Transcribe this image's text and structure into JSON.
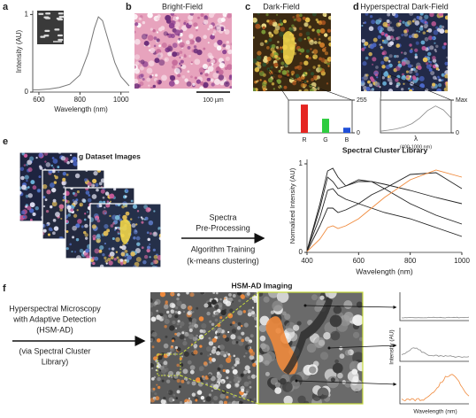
{
  "panel_a": {
    "label": "a",
    "x_label": "Wavelength (nm)",
    "y_label": "Intensity (AU)",
    "xlim": [
      570,
      1040
    ],
    "ylim": [
      0,
      1.05
    ],
    "xticks": [
      600,
      800,
      1000
    ],
    "yticks": [
      0,
      1
    ],
    "color": "#777777",
    "x": [
      570,
      600,
      650,
      700,
      750,
      800,
      840,
      870,
      890,
      910,
      940,
      970,
      1000,
      1040
    ],
    "values": [
      0.03,
      0.03,
      0.04,
      0.06,
      0.1,
      0.22,
      0.5,
      0.82,
      0.97,
      0.92,
      0.65,
      0.38,
      0.2,
      0.08
    ]
  },
  "panel_b": {
    "label": "b",
    "title": "Bright-Field",
    "scale_bar": "100 µm"
  },
  "panel_c": {
    "label": "c",
    "title": "Dark-Field",
    "inset": {
      "categories": [
        "R",
        "G",
        "B"
      ],
      "values": [
        220,
        110,
        40
      ],
      "colors": [
        "#e52521",
        "#2ecc40",
        "#1f4fd8"
      ],
      "ylim": [
        0,
        255
      ],
      "yticks": [
        0,
        255
      ]
    }
  },
  "panel_d": {
    "label": "d",
    "title": "Hyperspectral Dark-Field",
    "inset": {
      "x_label": "λ",
      "x_note": "(400-1000 nm)",
      "xlim": [
        400,
        1000
      ],
      "ylim": [
        0,
        1
      ],
      "yticks": [
        0,
        {
          "value": 1,
          "label": "Max"
        }
      ],
      "color": "#888888",
      "x": [
        400,
        467,
        533,
        600,
        667,
        733,
        800,
        867,
        933,
        1000
      ],
      "values": [
        0.05,
        0.08,
        0.12,
        0.18,
        0.28,
        0.45,
        0.68,
        0.82,
        0.7,
        0.45
      ]
    }
  },
  "panel_e": {
    "label": "e",
    "images_title": "Training Dataset Images",
    "process_lines": [
      "Spectra",
      "Pre-Processing",
      "Algorithm Training",
      "(k-means clustering)"
    ],
    "library": {
      "title": "Spectral Cluster Library",
      "x_label": "Wavelength (nm)",
      "y_label": "Normalized Intensity (AU)",
      "xlim": [
        400,
        1000
      ],
      "ylim": [
        0,
        1.05
      ],
      "xticks": [
        400,
        600,
        800,
        1000
      ],
      "yticks": [
        0,
        1
      ],
      "x": [
        400,
        450,
        480,
        500,
        520,
        550,
        600,
        650,
        700,
        800,
        900,
        1000
      ],
      "series": [
        {
          "color": "#222222",
          "values": [
            0.02,
            0.55,
            0.92,
            0.95,
            0.85,
            0.75,
            0.8,
            0.8,
            0.77,
            0.7,
            0.62,
            0.55
          ]
        },
        {
          "color": "#222222",
          "values": [
            0.02,
            0.5,
            0.85,
            0.8,
            0.72,
            0.75,
            0.82,
            0.8,
            0.72,
            0.55,
            0.42,
            0.32
          ]
        },
        {
          "color": "#222222",
          "values": [
            0.02,
            0.4,
            0.7,
            0.72,
            0.65,
            0.6,
            0.55,
            0.5,
            0.45,
            0.38,
            0.28,
            0.18
          ]
        },
        {
          "color": "#222222",
          "values": [
            0.01,
            0.3,
            0.5,
            0.5,
            0.45,
            0.48,
            0.55,
            0.65,
            0.72,
            0.88,
            0.9,
            0.72
          ]
        },
        {
          "color": "#f08a3c",
          "values": [
            0.01,
            0.15,
            0.28,
            0.3,
            0.27,
            0.3,
            0.38,
            0.5,
            0.62,
            0.82,
            0.93,
            0.85
          ]
        }
      ]
    }
  },
  "panel_f": {
    "label": "f",
    "title": "HSM-AD Imaging",
    "method_lines": [
      "Hyperspectral Microscopy",
      "with Adaptive Detection",
      "(HSM-AD)",
      "(via Spectral Cluster",
      "Library)"
    ],
    "y_label": "Intensity (AU)",
    "x_label": "Wavelength (nm)"
  }
}
